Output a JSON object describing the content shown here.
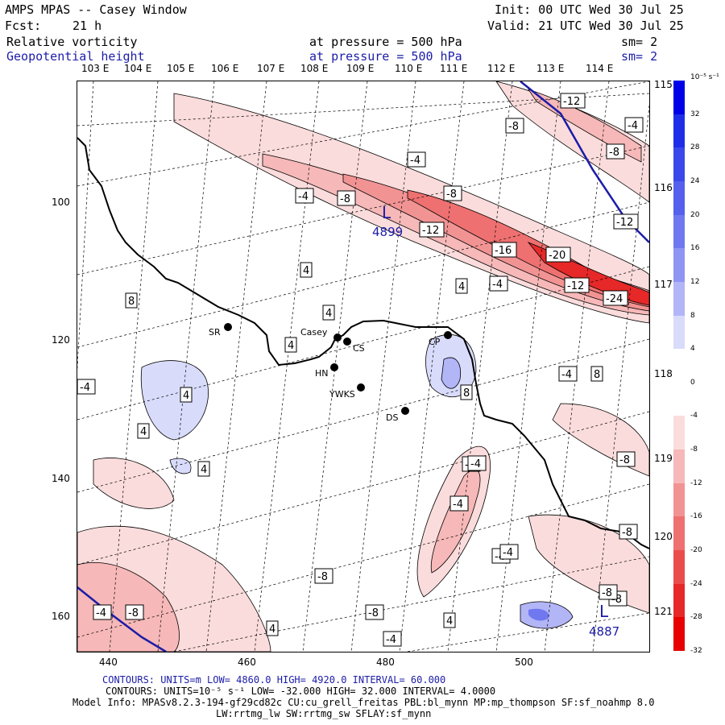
{
  "header": {
    "title": "AMPS MPAS -- Casey Window",
    "init": "Init: 00 UTC Wed 30 Jul 25",
    "fcst_label": "Fcst:",
    "fcst_value": "21 h",
    "valid": "Valid: 21 UTC Wed 30 Jul 25",
    "field1": "Relative vorticity",
    "field1_level": "at pressure =  500 hPa",
    "field1_sm": "sm= 2",
    "field2": "Geopotential height",
    "field2_level": "at pressure =  500 hPa",
    "field2_sm": "sm= 2"
  },
  "lon_labels": [
    "103 E",
    "104 E",
    "105 E",
    "106 E",
    "107 E",
    "108 E",
    "109 E",
    "110 E",
    "111 E",
    "112 E",
    "113 E",
    "114 E"
  ],
  "lat_labels": [
    "115 E",
    "116 E",
    "117 E",
    "118 E",
    "119 E",
    "120 E",
    "121 E"
  ],
  "x_ticks": [
    "440",
    "460",
    "480",
    "500"
  ],
  "y_ticks": [
    "100",
    "120",
    "140",
    "160"
  ],
  "colorbar": {
    "unit": "10⁻⁵ s⁻¹",
    "labels": [
      "32",
      "28",
      "24",
      "20",
      "16",
      "12",
      "8",
      "4",
      "0",
      "-4",
      "-8",
      "-12",
      "-16",
      "-20",
      "-24",
      "-28",
      "-32"
    ],
    "colors": [
      "#0000e6",
      "#1e2ee8",
      "#3a48ea",
      "#5560ec",
      "#7078ef",
      "#8f95f2",
      "#b2b5f6",
      "#d9dbfb",
      "#ffffff",
      "#ffffff",
      "#fbdcdc",
      "#f6b8b8",
      "#f29393",
      "#ee7070",
      "#ea4c4c",
      "#e62828",
      "#e60000"
    ]
  },
  "stations": [
    {
      "name": "SR"
    },
    {
      "name": "Casey"
    },
    {
      "name": "CS"
    },
    {
      "name": "HN"
    },
    {
      "name": "YWKS"
    },
    {
      "name": "DS"
    },
    {
      "name": "CP"
    }
  ],
  "contour_labels": [
    "-12",
    "-8",
    "-4",
    "-8",
    "-4",
    "-4",
    "-8",
    "-8",
    "-12",
    "-12",
    "-16",
    "-20",
    "-12",
    "-24",
    "4",
    "4",
    "4",
    "4",
    "-4",
    "-4",
    "8",
    "8",
    "4",
    "4",
    "4",
    "-4",
    "-4",
    "-4",
    "-4",
    "-8",
    "-8",
    "-4",
    "-4",
    "-8",
    "-4",
    "-8",
    "-8",
    "-8",
    "4",
    "4",
    "-4",
    "-4",
    "-8",
    "8"
  ],
  "lows": [
    {
      "letter": "L",
      "value": "4899"
    },
    {
      "letter": "L",
      "value": "4887"
    }
  ],
  "footer": {
    "line1": "CONTOURS:  UNITS=m  LOW=  4860.0        HIGH=  4920.0       INTERVAL=   60.000",
    "line2": "CONTOURS:  UNITS=10⁻⁵ s⁻¹  LOW=  -32.000      HIGH=  32.000        INTERVAL=   4.0000",
    "line3": "Model Info: MPASv8.2.3-194-gf29cd82c CU:cu_grell_freitas PBL:bl_mynn MP:mp_thompson SF:sf_noahmp 8.0",
    "line4": "LW:rrtmg_lw SW:rrtmg_sw SFLAY:sf_mynn"
  }
}
